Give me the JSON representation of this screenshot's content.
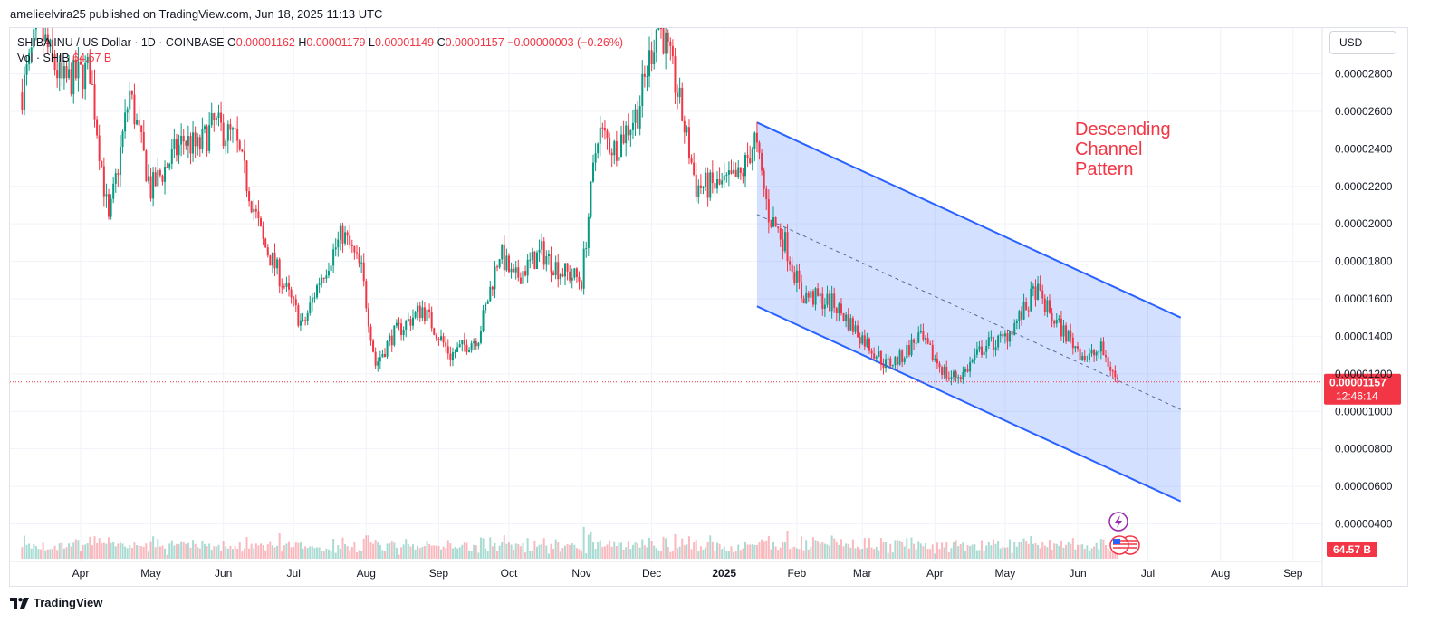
{
  "header": {
    "published": "amelieelvira25 published on TradingView.com, Jun 18, 2025 11:13 UTC"
  },
  "legend": {
    "symbol": "SHIBA INU / US Dollar · 1D · COINBASE",
    "o_key": "O",
    "o_val": "0.00001162",
    "h_key": "H",
    "h_val": "0.00001179",
    "l_key": "L",
    "l_val": "0.00001149",
    "c_key": "C",
    "c_val": "0.00001157",
    "change": "−0.00000003 (−0.26%)",
    "vol_label": "Vol · SHIB",
    "vol_val": "64.57 B"
  },
  "currency": "USD",
  "footer": {
    "brand": "TradingView"
  },
  "colors": {
    "up": "#089981",
    "down": "#f23645",
    "channel_line": "#2962ff",
    "channel_fill": "#2962ff",
    "annotation": "#f23645",
    "grid": "#f0f3fa"
  },
  "chart_data": {
    "type": "candlestick",
    "title": "SHIBA INU / US Dollar · 1D · COINBASE",
    "ylim": [
      2.5e-06,
      3e-06
    ],
    "y_ticks": [
      "0.00000400",
      "0.00000600",
      "0.00000800",
      "0.00001000",
      "0.00001200",
      "0.00001400",
      "0.00001600",
      "0.00001800",
      "0.00002000",
      "0.00002200",
      "0.00002400",
      "0.00002600",
      "0.00002800"
    ],
    "x_ticks": [
      {
        "label": "Apr",
        "date": "2024-04-01",
        "bold": false
      },
      {
        "label": "May",
        "date": "2024-05-01",
        "bold": false
      },
      {
        "label": "Jun",
        "date": "2024-06-01",
        "bold": false
      },
      {
        "label": "Jul",
        "date": "2024-07-01",
        "bold": false
      },
      {
        "label": "Aug",
        "date": "2024-08-01",
        "bold": false
      },
      {
        "label": "Sep",
        "date": "2024-09-01",
        "bold": false
      },
      {
        "label": "Oct",
        "date": "2024-10-01",
        "bold": false
      },
      {
        "label": "Nov",
        "date": "2024-11-01",
        "bold": false
      },
      {
        "label": "Dec",
        "date": "2024-12-01",
        "bold": false
      },
      {
        "label": "2025",
        "date": "2025-01-01",
        "bold": true
      },
      {
        "label": "Feb",
        "date": "2025-02-01",
        "bold": false
      },
      {
        "label": "Mar",
        "date": "2025-03-01",
        "bold": false
      },
      {
        "label": "Apr",
        "date": "2025-04-01",
        "bold": false
      },
      {
        "label": "May",
        "date": "2025-05-01",
        "bold": false
      },
      {
        "label": "Jun",
        "date": "2025-06-01",
        "bold": false
      },
      {
        "label": "Jul",
        "date": "2025-07-01",
        "bold": false
      },
      {
        "label": "Aug",
        "date": "2025-08-01",
        "bold": false
      },
      {
        "label": "Sep",
        "date": "2025-09-01",
        "bold": false
      }
    ],
    "price_path": [
      [
        "2024-03-07",
        2.7e-05
      ],
      [
        "2024-03-14",
        3.05e-05
      ],
      [
        "2024-03-24",
        2.75e-05
      ],
      [
        "2024-04-05",
        2.82e-05
      ],
      [
        "2024-04-13",
        2e-05
      ],
      [
        "2024-04-22",
        2.7e-05
      ],
      [
        "2024-05-01",
        2.18e-05
      ],
      [
        "2024-05-15",
        2.45e-05
      ],
      [
        "2024-05-21",
        2.4e-05
      ],
      [
        "2024-05-28",
        2.53e-05
      ],
      [
        "2024-06-06",
        2.45e-05
      ],
      [
        "2024-06-18",
        1.9e-05
      ],
      [
        "2024-06-24",
        1.75e-05
      ],
      [
        "2024-07-05",
        1.45e-05
      ],
      [
        "2024-07-12",
        1.7e-05
      ],
      [
        "2024-07-22",
        1.95e-05
      ],
      [
        "2024-07-30",
        1.75e-05
      ],
      [
        "2024-08-05",
        1.25e-05
      ],
      [
        "2024-08-12",
        1.4e-05
      ],
      [
        "2024-08-25",
        1.55e-05
      ],
      [
        "2024-09-06",
        1.3e-05
      ],
      [
        "2024-09-18",
        1.4e-05
      ],
      [
        "2024-09-27",
        1.85e-05
      ],
      [
        "2024-10-03",
        1.7e-05
      ],
      [
        "2024-10-15",
        1.85e-05
      ],
      [
        "2024-10-23",
        1.75e-05
      ],
      [
        "2024-11-01",
        1.7e-05
      ],
      [
        "2024-11-08",
        2.5e-05
      ],
      [
        "2024-11-15",
        2.4e-05
      ],
      [
        "2024-11-25",
        2.6e-05
      ],
      [
        "2024-12-04",
        3.1e-05
      ],
      [
        "2024-12-12",
        2.7e-05
      ],
      [
        "2024-12-20",
        2.2e-05
      ],
      [
        "2024-12-30",
        2.2e-05
      ],
      [
        "2025-01-08",
        2.25e-05
      ],
      [
        "2025-01-14",
        2.45e-05
      ],
      [
        "2025-01-20",
        2.05e-05
      ],
      [
        "2025-01-27",
        1.9e-05
      ],
      [
        "2025-02-03",
        1.62e-05
      ],
      [
        "2025-02-10",
        1.6e-05
      ],
      [
        "2025-02-17",
        1.57e-05
      ],
      [
        "2025-02-25",
        1.45e-05
      ],
      [
        "2025-03-04",
        1.35e-05
      ],
      [
        "2025-03-11",
        1.25e-05
      ],
      [
        "2025-03-17",
        1.28e-05
      ],
      [
        "2025-03-25",
        1.4e-05
      ],
      [
        "2025-03-29",
        1.33e-05
      ],
      [
        "2025-04-07",
        1.18e-05
      ],
      [
        "2025-04-13",
        1.2e-05
      ],
      [
        "2025-04-22",
        1.35e-05
      ],
      [
        "2025-04-30",
        1.38e-05
      ],
      [
        "2025-05-10",
        1.55e-05
      ],
      [
        "2025-05-14",
        1.65e-05
      ],
      [
        "2025-05-21",
        1.5e-05
      ],
      [
        "2025-05-31",
        1.35e-05
      ],
      [
        "2025-06-05",
        1.28e-05
      ],
      [
        "2025-06-11",
        1.33e-05
      ],
      [
        "2025-06-18",
        1.16e-05
      ]
    ],
    "last_price": "0.00001157",
    "countdown": "12:46:14",
    "volume_last": "64.57 B",
    "channel": {
      "upper_start": [
        "2025-01-15",
        2.54e-05
      ],
      "upper_end": [
        "2025-07-15",
        1.5e-05
      ],
      "lower_start": [
        "2025-01-15",
        1.56e-05
      ],
      "lower_end": [
        "2025-07-15",
        5.2e-06
      ]
    },
    "annotation": [
      "Descending",
      "Channel",
      "Pattern"
    ],
    "grid": true
  }
}
